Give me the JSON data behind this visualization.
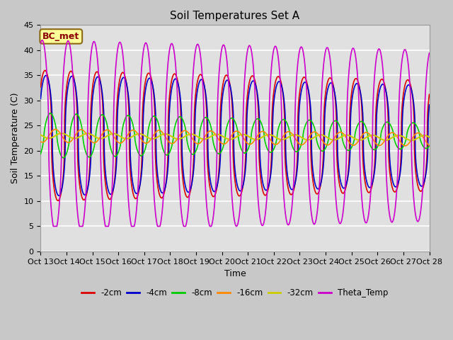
{
  "title": "Soil Temperatures Set A",
  "xlabel": "Time",
  "ylabel": "Soil Temperature (C)",
  "ylim": [
    0,
    45
  ],
  "annotation_text": "BC_met",
  "annotation_color": "#8B0000",
  "annotation_bg": "#FFFF99",
  "x_tick_labels": [
    "Oct 13",
    "Oct 14",
    "Oct 15",
    "Oct 16",
    "Oct 17",
    "Oct 18",
    "Oct 19",
    "Oct 20",
    "Oct 21",
    "Oct 22",
    "Oct 23",
    "Oct 24",
    "Oct 25",
    "Oct 26",
    "Oct 27",
    "Oct 28"
  ],
  "series": {
    "-2cm": {
      "color": "#DD0000",
      "lw": 1.2
    },
    "-4cm": {
      "color": "#0000CC",
      "lw": 1.2
    },
    "-8cm": {
      "color": "#00CC00",
      "lw": 1.2
    },
    "-16cm": {
      "color": "#FF8800",
      "lw": 1.2
    },
    "-32cm": {
      "color": "#CCCC00",
      "lw": 1.5
    },
    "Theta_Temp": {
      "color": "#CC00CC",
      "lw": 1.2
    }
  },
  "fig_bg": "#C8C8C8",
  "plot_bg": "#E0E0E0",
  "title_fontsize": 11,
  "label_fontsize": 9,
  "tick_fontsize": 8
}
